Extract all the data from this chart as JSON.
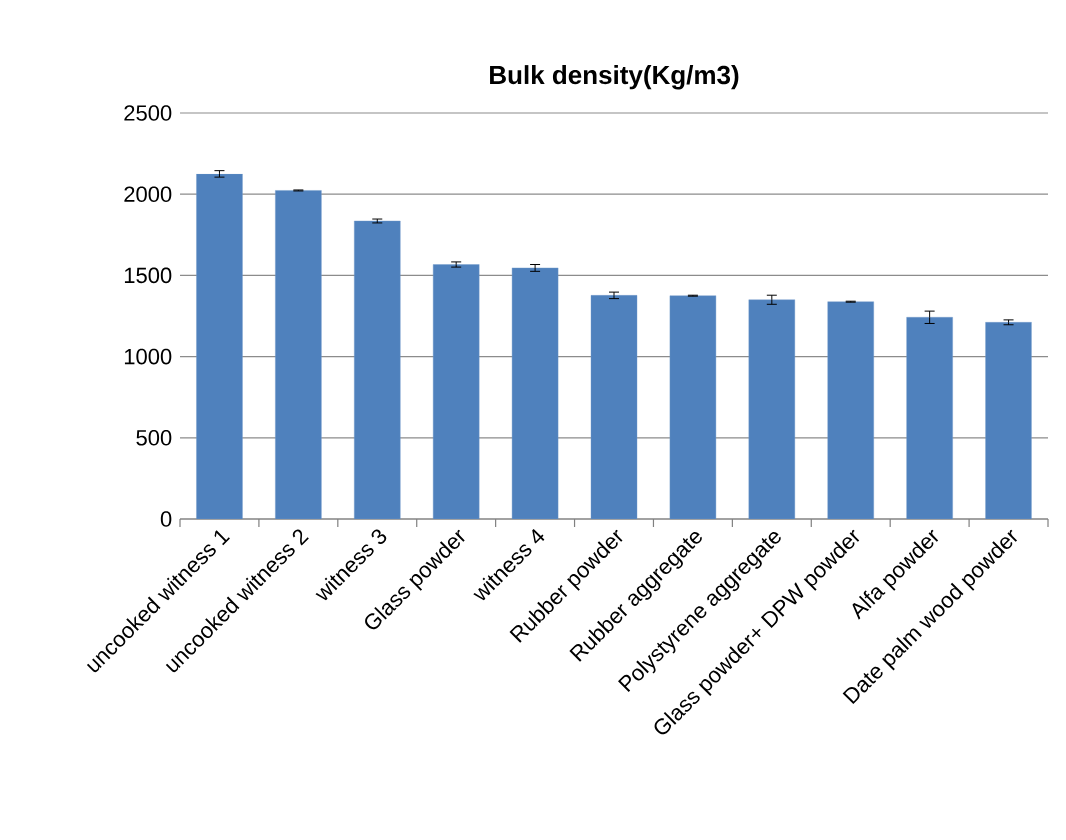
{
  "chart_data": {
    "type": "bar",
    "title": "Bulk density(Kg/m3)",
    "categories": [
      "uncooked witness 1",
      "uncooked witness 2",
      "witness 3",
      "Glass powder",
      "witness  4",
      "Rubber powder",
      "Rubber aggregate",
      "Polystyrene aggregate",
      "Glass powder+ DPW powder",
      "Alfa powder",
      "Date palm wood powder"
    ],
    "values": [
      2125,
      2023,
      1835,
      1567,
      1546,
      1377,
      1375,
      1350,
      1338,
      1242,
      1211
    ],
    "errors": [
      20,
      3,
      12,
      16,
      21,
      20,
      3,
      28,
      3,
      38,
      15
    ],
    "color": "#4f81bd",
    "ylim": [
      0,
      2500
    ],
    "yticks": [
      0,
      500,
      1000,
      1500,
      2000,
      2500
    ],
    "grid": "y"
  }
}
